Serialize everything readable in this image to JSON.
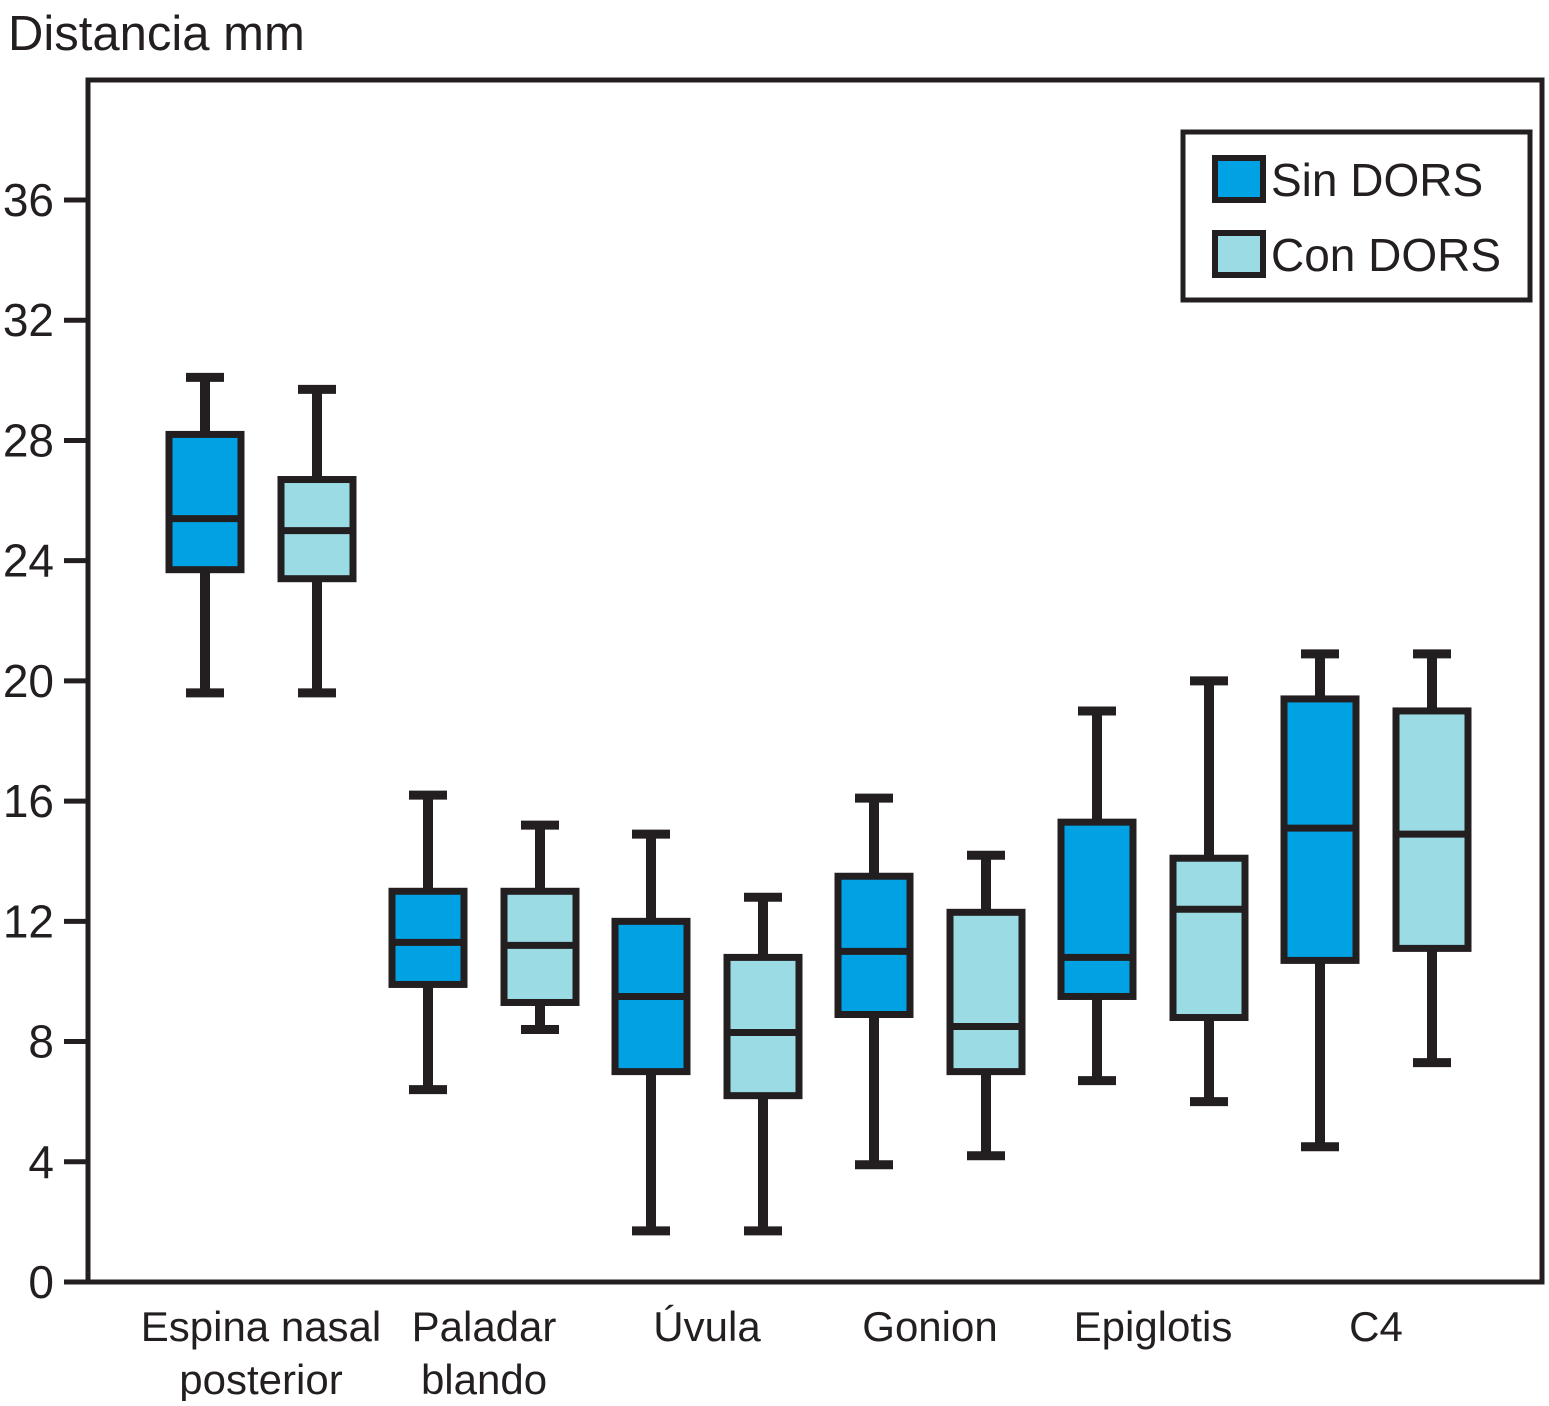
{
  "chart_data": {
    "type": "boxplot",
    "title": "Distancia mm",
    "xlabel": "",
    "ylabel": "Distancia mm",
    "ylim": [
      0,
      40
    ],
    "yticks": [
      0,
      4,
      8,
      12,
      16,
      20,
      24,
      28,
      32,
      36
    ],
    "grid": false,
    "legend_position": "top-right-inside",
    "categories": [
      "Espina nasal posterior",
      "Paladar blando",
      "Úvula",
      "Gonion",
      "Epiglotis",
      "C4"
    ],
    "category_label_lines": [
      [
        "Espina nasal",
        "posterior"
      ],
      [
        "Paladar",
        "blando"
      ],
      [
        "Úvula"
      ],
      [
        "Gonion"
      ],
      [
        "Epiglotis"
      ],
      [
        "C4"
      ]
    ],
    "series": [
      {
        "name": "Sin DORS",
        "color": "#00a2e4",
        "boxes": [
          {
            "category": "Espina nasal posterior",
            "min": 19.6,
            "q1": 23.7,
            "median": 25.4,
            "q3": 28.2,
            "max": 30.1
          },
          {
            "category": "Paladar blando",
            "min": 6.4,
            "q1": 9.9,
            "median": 11.3,
            "q3": 13.0,
            "max": 16.2
          },
          {
            "category": "Úvula",
            "min": 1.7,
            "q1": 7.0,
            "median": 9.5,
            "q3": 12.0,
            "max": 14.9
          },
          {
            "category": "Gonion",
            "min": 3.9,
            "q1": 8.9,
            "median": 11.0,
            "q3": 13.5,
            "max": 16.1
          },
          {
            "category": "Epiglotis",
            "min": 6.7,
            "q1": 9.5,
            "median": 10.8,
            "q3": 15.3,
            "max": 19.0
          },
          {
            "category": "C4",
            "min": 4.5,
            "q1": 10.7,
            "median": 15.1,
            "q3": 19.4,
            "max": 20.9
          }
        ]
      },
      {
        "name": "Con DORS",
        "color": "#9adbe4",
        "boxes": [
          {
            "category": "Espina nasal posterior",
            "min": 19.6,
            "q1": 23.4,
            "median": 25.0,
            "q3": 26.7,
            "max": 29.7
          },
          {
            "category": "Paladar blando",
            "min": 8.4,
            "q1": 9.3,
            "median": 11.2,
            "q3": 13.0,
            "max": 15.2
          },
          {
            "category": "Úvula",
            "min": 1.7,
            "q1": 6.2,
            "median": 8.3,
            "q3": 10.8,
            "max": 12.8
          },
          {
            "category": "Gonion",
            "min": 4.2,
            "q1": 7.0,
            "median": 8.5,
            "q3": 12.3,
            "max": 14.2
          },
          {
            "category": "Epiglotis",
            "min": 6.0,
            "q1": 8.8,
            "median": 12.4,
            "q3": 14.1,
            "max": 20.0
          },
          {
            "category": "C4",
            "min": 7.3,
            "q1": 11.1,
            "median": 14.9,
            "q3": 19.0,
            "max": 20.9
          }
        ]
      }
    ],
    "colors": {
      "stroke": "#231f20",
      "background": "#ffffff",
      "sin_dors_fill": "#00a2e4",
      "con_dors_fill": "#9adbe4"
    }
  }
}
